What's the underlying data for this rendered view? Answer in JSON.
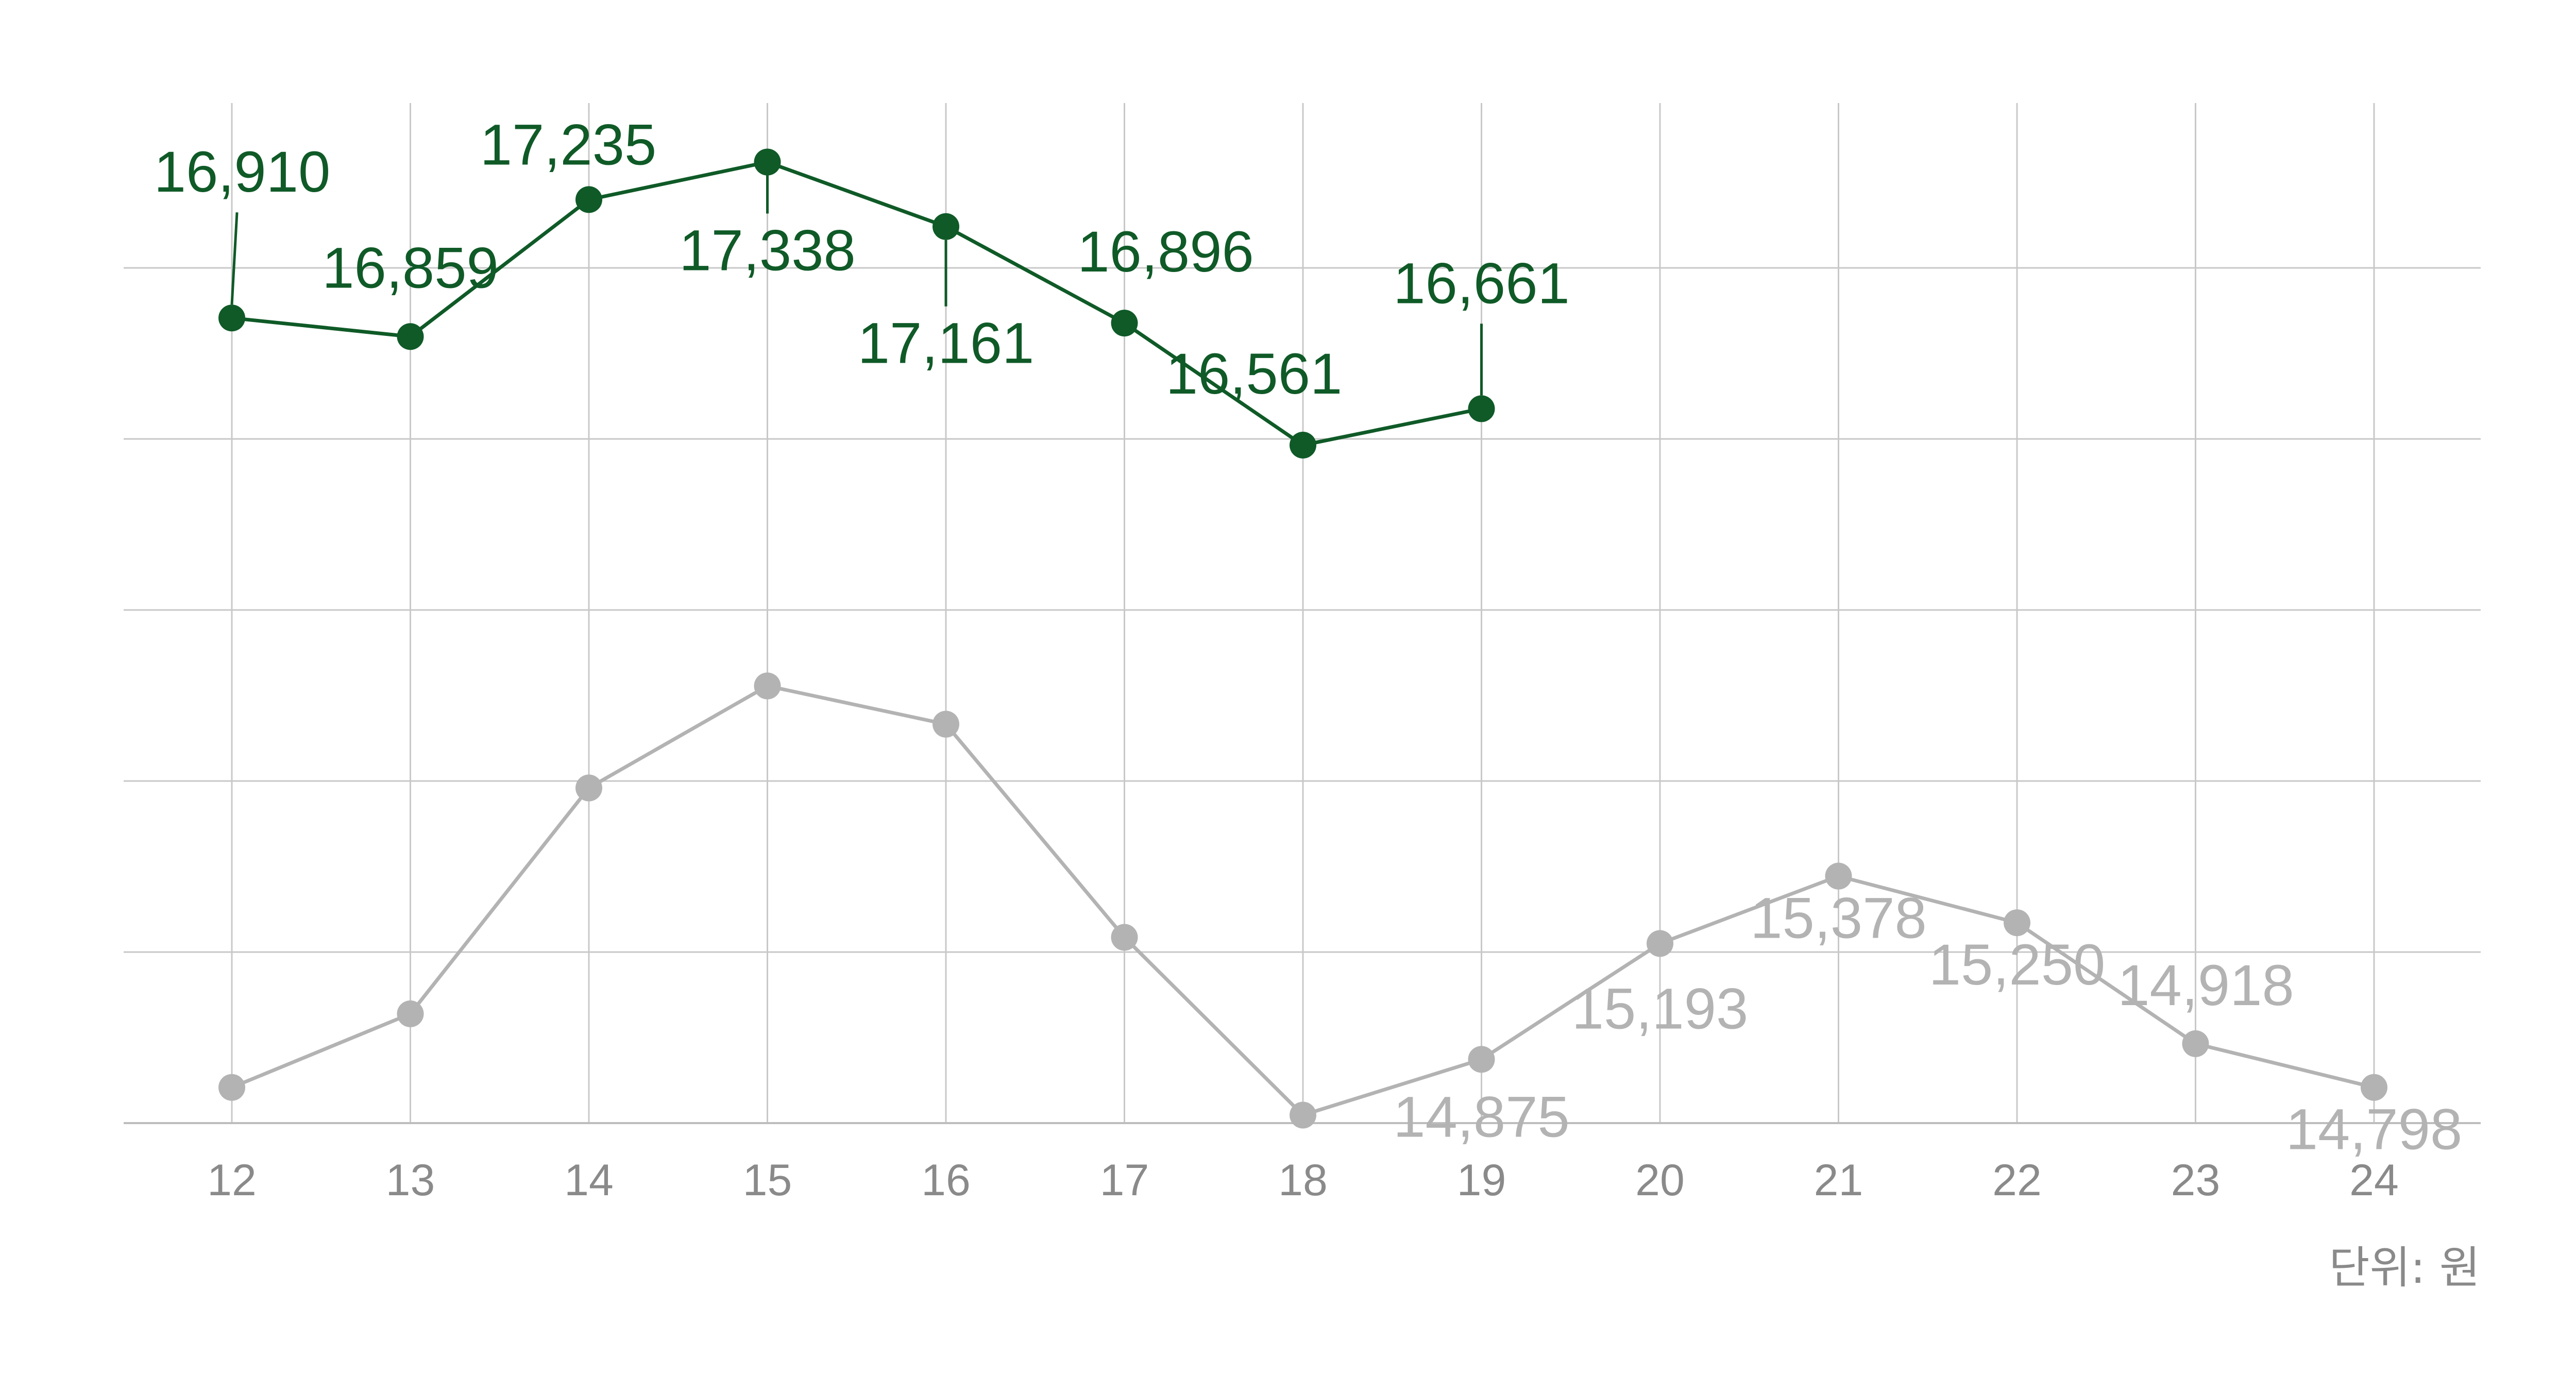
{
  "chart_data": {
    "type": "line",
    "x": [
      "12",
      "13",
      "14",
      "15",
      "16",
      "17",
      "18",
      "19",
      "20",
      "21",
      "22",
      "23",
      "24"
    ],
    "unit_label": "단위: 원",
    "ylim": [
      14700,
      17500
    ],
    "grid": true,
    "series": [
      {
        "color": "#0f5a27",
        "values": [
          16910,
          16859,
          17235,
          17338,
          17161,
          16896,
          16561,
          16661,
          null,
          null,
          null,
          null,
          null
        ],
        "labels": [
          "16,910",
          "16,859",
          "17,235",
          "17,338",
          "17,161",
          "16,896",
          "16,561",
          "16,661",
          null,
          null,
          null,
          null,
          null
        ]
      },
      {
        "color": "#b3b3b3",
        "values": [
          14798,
          15000,
          15620,
          15900,
          15795,
          15210,
          14722,
          14875,
          15193,
          15378,
          15250,
          14918,
          14798
        ],
        "labels": [
          null,
          null,
          null,
          null,
          null,
          null,
          null,
          "14,875",
          "15,193",
          "15,378",
          "15,250",
          "14,918",
          "14,798"
        ]
      }
    ]
  }
}
